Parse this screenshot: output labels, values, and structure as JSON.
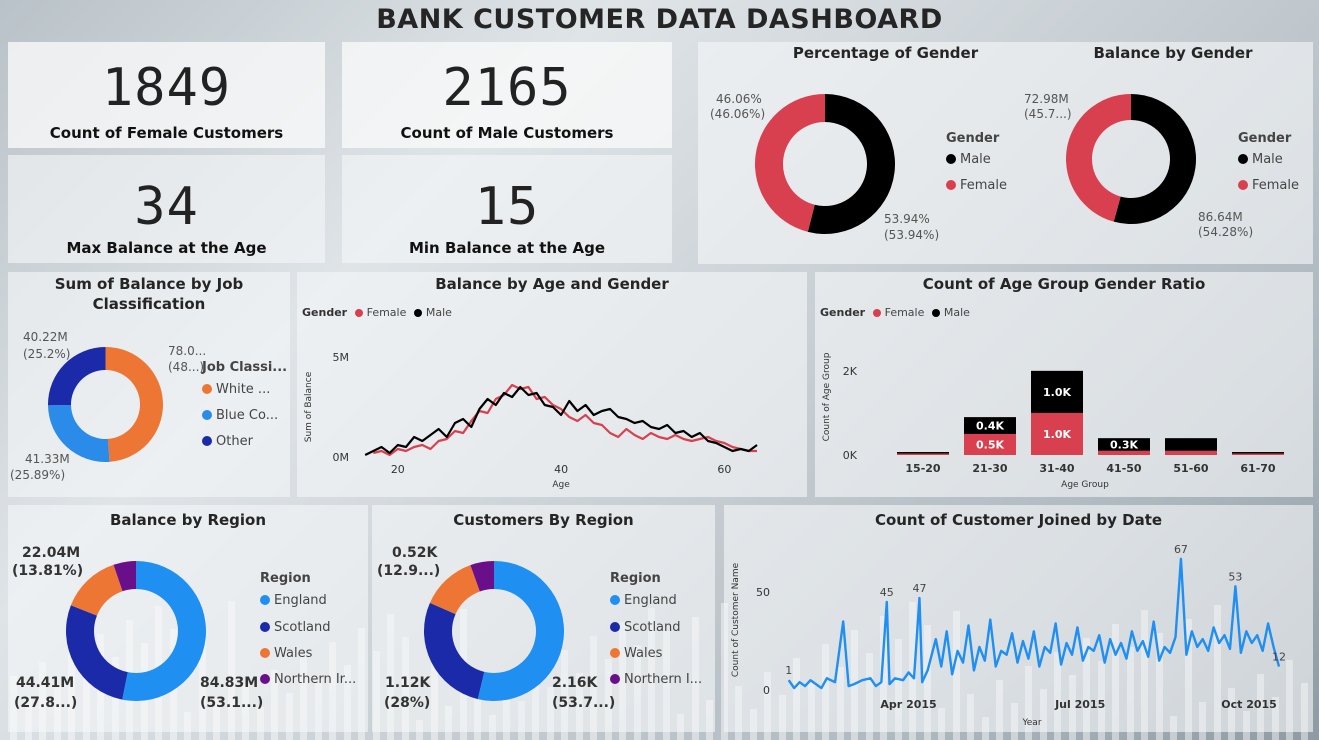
{
  "dashboard": {
    "title": "BANK CUSTOMER DATA DASHBOARD"
  },
  "colors": {
    "female": "#d9404f",
    "male": "#000000",
    "orange": "#ee7634",
    "blue_light": "#2b8be8",
    "blue_dark": "#1a2aa8",
    "england": "#1f8ff2",
    "scotland": "#1a2aa8",
    "wales": "#ee7634",
    "ni": "#6a0f8a"
  },
  "kpis": {
    "female": {
      "value": "1849",
      "label": "Count of Female Customers"
    },
    "male": {
      "value": "2165",
      "label": "Count of Male Customers"
    },
    "max_age": {
      "value": "34",
      "label": "Max Balance at the Age"
    },
    "min_age": {
      "value": "15",
      "label": "Min Balance at the Age"
    }
  },
  "pct_gender": {
    "title": "Percentage of Gender",
    "legend_title": "Gender",
    "legend": [
      "Male",
      "Female"
    ],
    "top_label": "46.06%",
    "top_sub": "(46.06%)",
    "bottom_label": "53.94%",
    "bottom_sub": "(53.94%)"
  },
  "bal_gender": {
    "title": "Balance by Gender",
    "legend_title": "Gender",
    "legend": [
      "Male",
      "Female"
    ],
    "top_label": "72.98M",
    "top_sub": "(45.7...)",
    "bottom_label": "86.64M",
    "bottom_sub": "(54.28%)"
  },
  "job": {
    "title_l1": "Sum of Balance by Job",
    "title_l2": "Classification",
    "legend_title": "Job Classi...",
    "legend": [
      "White ...",
      "Blue Co...",
      "Other"
    ],
    "lbl_a": "40.22M",
    "lbl_a2": "(25.2%)",
    "lbl_b": "78.0...",
    "lbl_b2": "(48...)",
    "lbl_c": "41.33M",
    "lbl_c2": "(25.89%)"
  },
  "age_gender": {
    "title": "Balance by Age and Gender",
    "legend_title": "Gender",
    "legend": [
      "Female",
      "Male"
    ],
    "y_ticks": [
      "5M",
      "0M"
    ],
    "x_ticks": [
      "20",
      "40",
      "60"
    ],
    "ylabel": "Sum of Balance",
    "xlabel": "Age"
  },
  "age_group": {
    "title": "Count of Age Group Gender Ratio",
    "legend_title": "Gender",
    "legend": [
      "Female",
      "Male"
    ],
    "y_ticks": [
      "2K",
      "0K"
    ],
    "ylabel": "Count of Age Group",
    "xlabel": "Age Group"
  },
  "region_bal": {
    "title": "Balance by Region",
    "legend_title": "Region",
    "legend": [
      "England",
      "Scotland",
      "Wales",
      "Northern Ir..."
    ],
    "lbl_tl": "22.04M",
    "lbl_tl2": "(13.81%)",
    "lbl_bl": "44.41M",
    "lbl_bl2": "(27.8...)",
    "lbl_br": "84.83M",
    "lbl_br2": "(53.1...)"
  },
  "region_cust": {
    "title": "Customers By Region",
    "legend_title": "Region",
    "legend": [
      "England",
      "Scotland",
      "Wales",
      "Northern I..."
    ],
    "lbl_tl": "0.52K",
    "lbl_tl2": "(12.9...)",
    "lbl_bl": "1.12K",
    "lbl_bl2": "(28%)",
    "lbl_br": "2.16K",
    "lbl_br2": "(53.7...)"
  },
  "joined": {
    "title": "Count of Customer Joined by Date",
    "ylabel": "Count of Customer Name",
    "xlabel": "Year",
    "y_ticks": [
      "50",
      "0"
    ],
    "x_ticks": [
      "Apr 2015",
      "Jul 2015",
      "Oct 2015"
    ],
    "annotations": [
      "1",
      "45",
      "47",
      "67",
      "53",
      "12"
    ]
  },
  "chart_data": [
    {
      "type": "pie",
      "title": "Percentage of Gender",
      "labels": [
        "Male",
        "Female"
      ],
      "values": [
        53.94,
        46.06
      ]
    },
    {
      "type": "pie",
      "title": "Balance by Gender",
      "labels": [
        "Male",
        "Female"
      ],
      "values": [
        86.64,
        72.98
      ],
      "unit": "M"
    },
    {
      "type": "pie",
      "title": "Sum of Balance by Job Classification",
      "labels": [
        "White ...",
        "Blue Co...",
        "Other"
      ],
      "values": [
        78.0,
        41.33,
        40.22
      ],
      "unit": "M"
    },
    {
      "type": "line",
      "title": "Balance by Age and Gender",
      "xlabel": "Age",
      "ylabel": "Sum of Balance",
      "x_range": [
        15,
        64
      ],
      "ylim": [
        0,
        5
      ],
      "series": [
        {
          "name": "Female",
          "x": [
            17,
            18,
            19,
            20,
            21,
            22,
            23,
            24,
            25,
            26,
            27,
            28,
            29,
            30,
            31,
            32,
            33,
            34,
            35,
            36,
            37,
            38,
            39,
            40,
            41,
            42,
            43,
            44,
            45,
            46,
            47,
            48,
            49,
            50,
            51,
            52,
            53,
            54,
            55,
            56,
            57,
            58,
            59,
            60,
            61,
            62,
            63,
            64
          ],
          "y": [
            0.2,
            0.3,
            0.1,
            0.4,
            0.3,
            0.5,
            0.6,
            0.4,
            0.8,
            0.9,
            1.3,
            1.2,
            1.8,
            2.3,
            2.2,
            2.9,
            3.1,
            3.6,
            3.4,
            3.5,
            2.9,
            3.0,
            2.6,
            2.4,
            2.0,
            1.8,
            2.1,
            1.7,
            1.6,
            1.2,
            1.0,
            1.4,
            1.1,
            0.9,
            1.2,
            1.0,
            0.9,
            1.1,
            0.9,
            0.8,
            0.9,
            1.0,
            0.8,
            0.7,
            0.5,
            0.4,
            0.3,
            0.3
          ]
        },
        {
          "name": "Male",
          "x": [
            16,
            17,
            18,
            19,
            20,
            21,
            22,
            23,
            24,
            25,
            26,
            27,
            28,
            29,
            30,
            31,
            32,
            33,
            34,
            35,
            36,
            37,
            38,
            39,
            40,
            41,
            42,
            43,
            44,
            45,
            46,
            47,
            48,
            49,
            50,
            51,
            52,
            53,
            54,
            55,
            56,
            57,
            58,
            59,
            60,
            61,
            62,
            63,
            64
          ],
          "y": [
            0.1,
            0.3,
            0.5,
            0.2,
            0.6,
            0.5,
            1.0,
            0.8,
            1.1,
            1.4,
            1.0,
            1.7,
            1.9,
            1.5,
            2.4,
            2.9,
            2.6,
            3.2,
            3.0,
            3.5,
            3.1,
            3.2,
            2.6,
            2.5,
            2.1,
            2.8,
            2.3,
            2.6,
            2.1,
            2.3,
            2.4,
            2.0,
            1.9,
            1.7,
            1.8,
            1.5,
            1.4,
            1.6,
            1.2,
            1.3,
            1.0,
            1.2,
            0.8,
            0.7,
            0.5,
            0.3,
            0.4,
            0.3,
            0.6
          ]
        }
      ]
    },
    {
      "type": "bar",
      "title": "Count of Age Group Gender Ratio",
      "xlabel": "Age Group",
      "ylabel": "Count of Age Group",
      "categories": [
        "15-20",
        "21-30",
        "31-40",
        "41-50",
        "51-60",
        "61-70"
      ],
      "ylim": [
        0,
        2.4
      ],
      "series": [
        {
          "name": "Female",
          "values": [
            0.01,
            0.5,
            1.0,
            0.1,
            0.1,
            0.0
          ],
          "labels": [
            "",
            "0.5K",
            "1.0K",
            "",
            "",
            ""
          ]
        },
        {
          "name": "Male",
          "values": [
            0.02,
            0.4,
            1.0,
            0.3,
            0.3,
            0.02
          ],
          "labels": [
            "",
            "0.4K",
            "1.0K",
            "0.3K",
            "",
            ""
          ]
        }
      ]
    },
    {
      "type": "pie",
      "title": "Balance by Region",
      "labels": [
        "England",
        "Scotland",
        "Wales",
        "Northern Ir..."
      ],
      "values": [
        84.83,
        44.41,
        22.04,
        8.3
      ],
      "unit": "M"
    },
    {
      "type": "pie",
      "title": "Customers By Region",
      "labels": [
        "England",
        "Scotland",
        "Wales",
        "Northern I..."
      ],
      "values": [
        2.16,
        1.12,
        0.52,
        0.22
      ],
      "unit": "K"
    },
    {
      "type": "line",
      "title": "Count of Customer Joined by Date",
      "xlabel": "Year",
      "ylabel": "Count of Customer Name",
      "x_ticks": [
        "Apr 2015",
        "Jul 2015",
        "Oct 2015"
      ],
      "ylim": [
        0,
        70
      ],
      "points": [
        [
          1,
          5
        ],
        [
          3,
          1
        ],
        [
          5,
          4
        ],
        [
          7,
          2
        ],
        [
          9,
          5
        ],
        [
          11,
          3
        ],
        [
          13,
          1
        ],
        [
          15,
          6
        ],
        [
          18,
          4
        ],
        [
          21,
          35
        ],
        [
          23,
          2
        ],
        [
          25,
          3
        ],
        [
          28,
          5
        ],
        [
          31,
          6
        ],
        [
          33,
          2
        ],
        [
          35,
          4
        ],
        [
          37,
          45
        ],
        [
          38,
          3
        ],
        [
          40,
          6
        ],
        [
          43,
          5
        ],
        [
          45,
          9
        ],
        [
          47,
          6
        ],
        [
          49,
          47
        ],
        [
          50,
          4
        ],
        [
          52,
          10
        ],
        [
          55,
          26
        ],
        [
          57,
          12
        ],
        [
          59,
          30
        ],
        [
          61,
          8
        ],
        [
          63,
          20
        ],
        [
          65,
          14
        ],
        [
          67,
          33
        ],
        [
          69,
          10
        ],
        [
          71,
          22
        ],
        [
          73,
          15
        ],
        [
          75,
          36
        ],
        [
          77,
          12
        ],
        [
          79,
          20
        ],
        [
          81,
          18
        ],
        [
          83,
          29
        ],
        [
          85,
          14
        ],
        [
          87,
          25
        ],
        [
          89,
          16
        ],
        [
          91,
          30
        ],
        [
          93,
          12
        ],
        [
          95,
          22
        ],
        [
          97,
          19
        ],
        [
          99,
          34
        ],
        [
          101,
          13
        ],
        [
          103,
          24
        ],
        [
          105,
          18
        ],
        [
          107,
          32
        ],
        [
          109,
          15
        ],
        [
          111,
          22
        ],
        [
          113,
          20
        ],
        [
          115,
          28
        ],
        [
          117,
          14
        ],
        [
          119,
          26
        ],
        [
          121,
          18
        ],
        [
          123,
          24
        ],
        [
          125,
          16
        ],
        [
          127,
          30
        ],
        [
          129,
          20
        ],
        [
          131,
          25
        ],
        [
          133,
          17
        ],
        [
          135,
          35
        ],
        [
          137,
          15
        ],
        [
          139,
          22
        ],
        [
          141,
          19
        ],
        [
          143,
          27
        ],
        [
          145,
          67
        ],
        [
          147,
          18
        ],
        [
          149,
          30
        ],
        [
          151,
          22
        ],
        [
          153,
          26
        ],
        [
          155,
          20
        ],
        [
          157,
          32
        ],
        [
          159,
          24
        ],
        [
          161,
          28
        ],
        [
          163,
          21
        ],
        [
          165,
          53
        ],
        [
          167,
          19
        ],
        [
          169,
          30
        ],
        [
          171,
          24
        ],
        [
          173,
          28
        ],
        [
          175,
          20
        ],
        [
          177,
          34
        ],
        [
          179,
          22
        ],
        [
          181,
          12
        ]
      ]
    }
  ]
}
